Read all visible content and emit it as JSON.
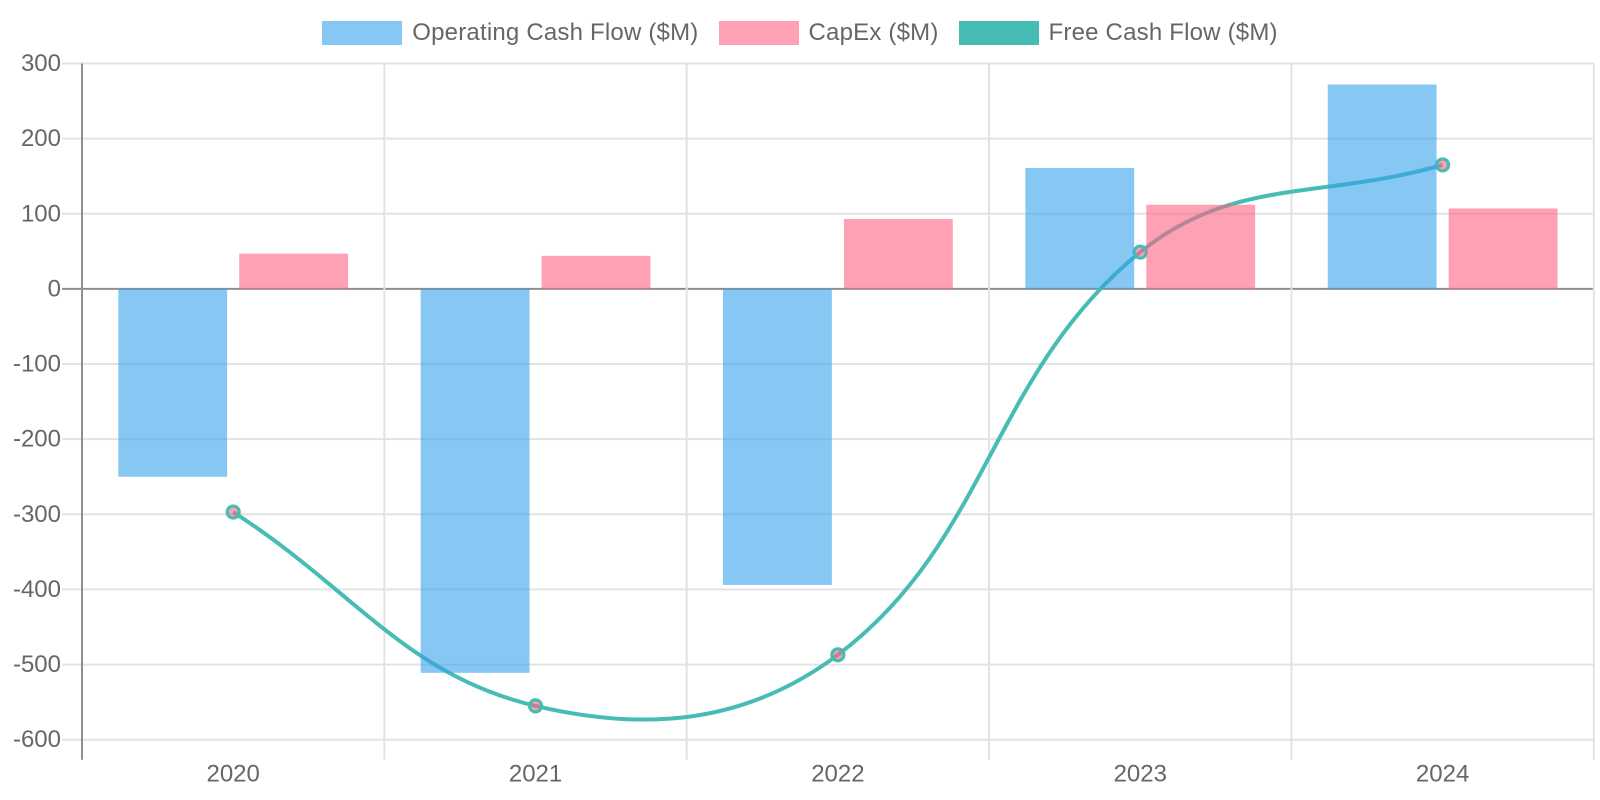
{
  "chart_data": {
    "type": "combo-bar-line",
    "categories": [
      "2020",
      "2021",
      "2022",
      "2023",
      "2024"
    ],
    "series": [
      {
        "name": "Operating Cash Flow ($M)",
        "type": "bar",
        "color": "rgba(54,162,235,0.6)",
        "values": [
          -250,
          -511,
          -394,
          161,
          272
        ]
      },
      {
        "name": "CapEx ($M)",
        "type": "bar",
        "color": "rgba(255,99,132,0.6)",
        "values": [
          47,
          44,
          93,
          112,
          107
        ]
      },
      {
        "name": "Free Cash Flow ($M)",
        "type": "line",
        "color": "#47BCB5",
        "point_fill": "rgba(255,99,132,0.6)",
        "line_tension": 0.4,
        "values": [
          -297,
          -555,
          -487,
          49,
          165
        ]
      }
    ],
    "title": "",
    "xlabel": "",
    "ylabel": "",
    "ylim": [
      -600,
      300
    ],
    "ytick_step": 100,
    "y_tick_labels": [
      "300",
      "200",
      "100",
      "0",
      "-100",
      "-200",
      "-300",
      "-400",
      "-500",
      "-600"
    ],
    "x_tick_labels": [
      "2020",
      "2021",
      "2022",
      "2023",
      "2024"
    ],
    "grid": true,
    "legend_position": "top"
  },
  "legend": {
    "items": [
      {
        "label": "Operating Cash Flow ($M)",
        "color": "rgba(54,162,235,0.6)"
      },
      {
        "label": "CapEx ($M)",
        "color": "rgba(255,99,132,0.6)"
      },
      {
        "label": "Free Cash Flow ($M)",
        "color": "#47BCB5"
      }
    ]
  },
  "colors": {
    "grid_line": "#e3e3e3",
    "zero_line": "#8f8f8f",
    "axis_line": "#8f8f8f",
    "tick_text": "#666666",
    "background": "#ffffff"
  }
}
